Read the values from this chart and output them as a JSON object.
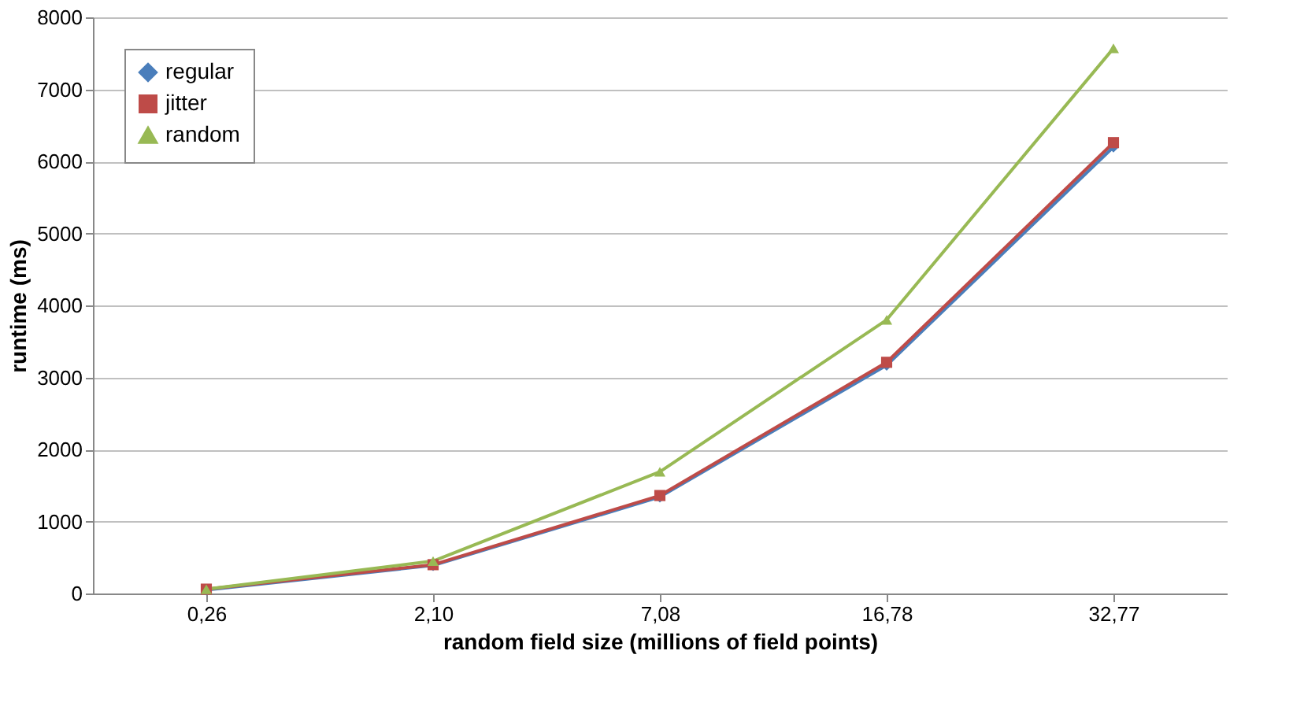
{
  "chart_data": {
    "type": "line",
    "xlabel": "random field size (millions of field points)",
    "ylabel": "runtime (ms)",
    "categories": [
      "0,26",
      "2,10",
      "7,08",
      "16,78",
      "32,77"
    ],
    "series": [
      {
        "name": "regular",
        "color": "#4a7ebb",
        "marker": "diamond",
        "values": [
          50,
          390,
          1340,
          3170,
          6200
        ]
      },
      {
        "name": "jitter",
        "color": "#be4b48",
        "marker": "square",
        "values": [
          60,
          400,
          1360,
          3210,
          6260
        ]
      },
      {
        "name": "random",
        "color": "#98b954",
        "marker": "triangle",
        "values": [
          60,
          450,
          1690,
          3800,
          7570
        ]
      }
    ],
    "ylim": [
      0,
      8000
    ],
    "yticks": [
      0,
      1000,
      2000,
      3000,
      4000,
      5000,
      6000,
      7000,
      8000
    ],
    "grid": "y",
    "legend": "top left"
  }
}
